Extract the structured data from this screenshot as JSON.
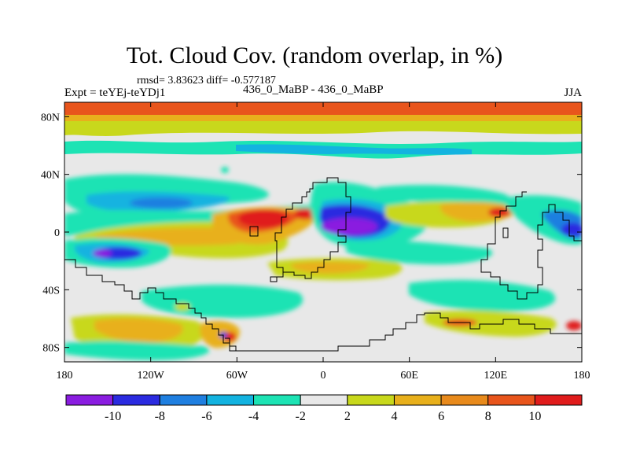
{
  "chart_data": {
    "type": "heatmap",
    "title": "Tot. Cloud Cov. (random overlap, in %)",
    "stats_line": "rmsd= 3.83623 diff= -0.577187",
    "left_label": "Expt = teYEj-teYDj1",
    "center_label": "436_0_MaBP - 436_0_MaBP",
    "right_label": "JJA",
    "x_ticks": [
      "180",
      "120W",
      "60W",
      "0",
      "60E",
      "120E",
      "180"
    ],
    "x_tick_values": [
      -180,
      -120,
      -60,
      0,
      60,
      120,
      180
    ],
    "y_ticks": [
      "80N",
      "40N",
      "0",
      "40S",
      "80S"
    ],
    "y_tick_values": [
      80,
      40,
      0,
      -40,
      -80
    ],
    "xlim": [
      -180,
      180
    ],
    "ylim": [
      -90,
      90
    ],
    "colorbar": {
      "tick_labels": [
        "-10",
        "-8",
        "-6",
        "-4",
        "-2",
        "2",
        "4",
        "6",
        "8",
        "10"
      ],
      "colors": [
        "#8a1de0",
        "#2b2be0",
        "#1f7fe0",
        "#13b3e0",
        "#1de3b4",
        "#e8e8e8",
        "#c8d81c",
        "#e8b01c",
        "#e88a1c",
        "#e8551c",
        "#e01c1c"
      ]
    },
    "regions": [
      {
        "lon": [
          -180,
          180
        ],
        "lat": [
          78,
          90
        ],
        "value": 10
      },
      {
        "lon": [
          -180,
          180
        ],
        "lat": [
          72,
          78
        ],
        "value": 8
      },
      {
        "lon": [
          -180,
          180
        ],
        "lat": [
          66,
          72
        ],
        "value": 4
      },
      {
        "lon": [
          -180,
          180
        ],
        "lat": [
          52,
          60
        ],
        "value": -3
      },
      {
        "lon": [
          -100,
          -40
        ],
        "lat": [
          -8,
          8
        ],
        "value": 5
      },
      {
        "lon": [
          -40,
          -10
        ],
        "lat": [
          0,
          10
        ],
        "value": 10
      },
      {
        "lon": [
          0,
          40
        ],
        "lat": [
          -2,
          10
        ],
        "value": -10
      },
      {
        "lon": [
          -150,
          -100
        ],
        "lat": [
          12,
          22
        ],
        "value": -5
      },
      {
        "lon": [
          100,
          140
        ],
        "lat": [
          2,
          12
        ],
        "value": 6
      },
      {
        "lon": [
          150,
          180
        ],
        "lat": [
          -2,
          8
        ],
        "value": -8
      },
      {
        "lon": [
          -160,
          -140
        ],
        "lat": [
          -10,
          -4
        ],
        "value": -9
      },
      {
        "lon": [
          -40,
          40
        ],
        "lat": [
          -22,
          -12
        ],
        "value": 5
      },
      {
        "lon": [
          -160,
          -100
        ],
        "lat": [
          -80,
          -65
        ],
        "value": 4
      },
      {
        "lon": [
          -70,
          -60
        ],
        "lat": [
          -75,
          -65
        ],
        "value": -8
      },
      {
        "lon": [
          90,
          110
        ],
        "lat": [
          -68,
          -62
        ],
        "value": 8
      }
    ],
    "legend": "bottom-colorbar",
    "grid": false
  }
}
